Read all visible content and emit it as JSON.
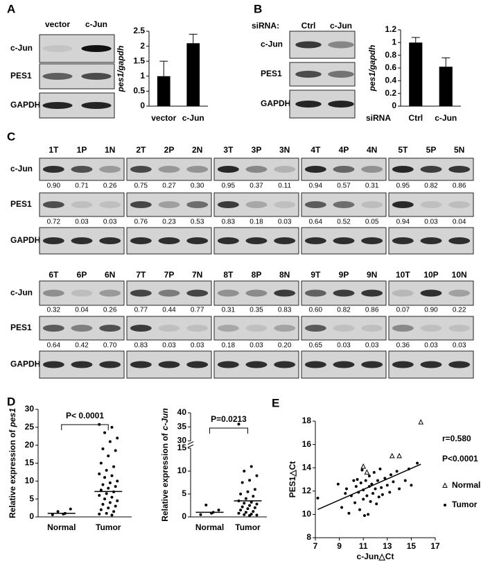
{
  "panels": [
    "A",
    "B",
    "C",
    "D",
    "E"
  ],
  "blot_a": {
    "lanes": [
      "vector",
      "c-Jun"
    ],
    "rows": [
      "c-Jun",
      "PES1",
      "GAPDH"
    ]
  },
  "blot_b": {
    "label": "siRNA:",
    "lanes": [
      "Ctrl",
      "c-Jun"
    ],
    "rows": [
      "c-Jun",
      "PES1",
      "GAPDH"
    ]
  },
  "blot_c": {
    "rows": [
      "c-Jun",
      "PES1",
      "GAPDH"
    ],
    "groups": [
      {
        "lanes": [
          "1T",
          "1P",
          "1N"
        ],
        "cjun": [
          "0.90",
          "0.71",
          "0.26"
        ],
        "pes1": [
          "0.72",
          "0.03",
          "0.03"
        ]
      },
      {
        "lanes": [
          "2T",
          "2P",
          "2N"
        ],
        "cjun": [
          "0.75",
          "0.27",
          "0.30"
        ],
        "pes1": [
          "0.76",
          "0.23",
          "0.53"
        ]
      },
      {
        "lanes": [
          "3T",
          "3P",
          "3N"
        ],
        "cjun": [
          "0.95",
          "0.37",
          "0.11"
        ],
        "pes1": [
          "0.83",
          "0.18",
          "0.03"
        ]
      },
      {
        "lanes": [
          "4T",
          "4P",
          "4N"
        ],
        "cjun": [
          "0.94",
          "0.57",
          "0.31"
        ],
        "pes1": [
          "0.64",
          "0.52",
          "0.05"
        ]
      },
      {
        "lanes": [
          "5T",
          "5P",
          "5N"
        ],
        "cjun": [
          "0.95",
          "0.82",
          "0.86"
        ],
        "pes1": [
          "0.94",
          "0.03",
          "0.04"
        ]
      },
      {
        "lanes": [
          "6T",
          "6P",
          "6N"
        ],
        "cjun": [
          "0.32",
          "0.04",
          "0.26"
        ],
        "pes1": [
          "0.64",
          "0.42",
          "0.70"
        ]
      },
      {
        "lanes": [
          "7T",
          "7P",
          "7N"
        ],
        "cjun": [
          "0.77",
          "0.44",
          "0.77"
        ],
        "pes1": [
          "0.83",
          "0.03",
          "0.03"
        ]
      },
      {
        "lanes": [
          "8T",
          "8P",
          "8N"
        ],
        "cjun": [
          "0.31",
          "0.35",
          "0.83"
        ],
        "pes1": [
          "0.18",
          "0.03",
          "0.20"
        ]
      },
      {
        "lanes": [
          "9T",
          "9P",
          "9N"
        ],
        "cjun": [
          "0.60",
          "0.82",
          "0.86"
        ],
        "pes1": [
          "0.65",
          "0.03",
          "0.03"
        ]
      },
      {
        "lanes": [
          "10T",
          "10P",
          "10N"
        ],
        "cjun": [
          "0.07",
          "0.90",
          "0.22"
        ],
        "pes1": [
          "0.36",
          "0.03",
          "0.03"
        ]
      }
    ]
  },
  "chart_data": [
    {
      "type": "bar",
      "ylabel": "pes1/gapdh",
      "categories": [
        "vector",
        "c-Jun"
      ],
      "values": [
        1.0,
        2.1
      ],
      "errors": [
        0.5,
        0.3
      ],
      "color": "#000000",
      "ylim": [
        0,
        2.5
      ],
      "yticks": [
        0,
        0.5,
        1,
        1.5,
        2,
        2.5
      ]
    },
    {
      "type": "bar",
      "ylabel": "pes1/gapdh",
      "xlabel": "siRNA",
      "categories": [
        "Ctrl",
        "c-Jun"
      ],
      "values": [
        1.0,
        0.62
      ],
      "errors": [
        0.08,
        0.14
      ],
      "color": "#000000",
      "ylim": [
        0,
        1.2
      ],
      "yticks": [
        0,
        0.2,
        0.4,
        0.6,
        0.8,
        1,
        1.2
      ]
    },
    {
      "type": "strip",
      "ylabel": "Relative expression of",
      "ylabel_gene": "pes1",
      "annotation": "P< 0.0001",
      "categories": [
        "Normal",
        "Tumor"
      ],
      "values": [
        [
          0.6,
          1,
          1.5,
          2.2,
          0.8
        ],
        [
          25.8,
          25,
          23.5,
          22,
          21,
          19,
          18.5,
          17,
          15,
          14,
          13,
          12,
          11.5,
          11,
          10,
          9.5,
          9,
          8.5,
          8,
          7.5,
          7,
          6.5,
          6,
          5.5,
          5,
          4.5,
          4,
          3.5,
          3,
          2.5,
          2,
          1.5,
          1,
          0.8,
          0.5
        ]
      ],
      "centers": [
        1.0,
        7.1
      ],
      "ylim": [
        0,
        30
      ],
      "yticks": [
        0,
        5,
        10,
        15,
        20,
        25,
        30
      ]
    },
    {
      "type": "strip",
      "ylabel": "Relative expression of",
      "ylabel_gene": "c-Jun",
      "annotation": "P=0.0213",
      "categories": [
        "Normal",
        "Tumor"
      ],
      "values": [
        [
          0.5,
          1,
          2.6,
          1.5,
          0.8
        ],
        [
          36,
          11,
          10,
          9,
          8,
          7.5,
          6,
          5.5,
          5,
          4.5,
          4,
          3.5,
          3.2,
          3,
          2.8,
          2.5,
          2.2,
          2,
          1.8,
          1.5,
          1.2,
          1,
          0.8,
          0.6,
          0.5,
          0.4,
          0.3
        ]
      ],
      "centers": [
        1.0,
        3.5
      ],
      "ylim": [
        0,
        40
      ],
      "ybreak": [
        15,
        30
      ],
      "yticks": [
        0,
        5,
        10,
        15,
        30,
        35,
        40
      ]
    },
    {
      "type": "scatter",
      "xlabel": "c-Jun△Ct",
      "ylabel": "PES1△Ct",
      "annotations": [
        "r=0.580",
        "P<0.0001"
      ],
      "xlim": [
        7,
        17
      ],
      "xticks": [
        7,
        9,
        11,
        13,
        15,
        17
      ],
      "ylim": [
        8,
        18
      ],
      "yticks": [
        8,
        10,
        12,
        14,
        16,
        18
      ],
      "series": [
        {
          "name": "Normal",
          "color": "#999999",
          "marker": "triangle",
          "x": [
            11.0,
            13.4,
            14.0,
            15.8,
            11.3
          ],
          "y": [
            14.1,
            15.0,
            15.0,
            17.9,
            13.6
          ]
        },
        {
          "name": "Tumor",
          "color": "#000000",
          "marker": "circle",
          "x": [
            7.2,
            8.9,
            9.2,
            9.5,
            9.6,
            9.8,
            10.0,
            10.2,
            10.3,
            10.4,
            10.5,
            10.6,
            10.7,
            10.8,
            10.9,
            11.0,
            11.0,
            11.1,
            11.2,
            11.3,
            11.4,
            11.5,
            11.5,
            11.6,
            11.7,
            11.8,
            11.9,
            12.0,
            12.1,
            12.2,
            12.3,
            12.4,
            12.5,
            12.6,
            12.8,
            13.0,
            13.2,
            13.3,
            13.5,
            13.8,
            14.0,
            14.5,
            14.8,
            15.0,
            15.5
          ],
          "y": [
            11.4,
            12.6,
            10.6,
            11.8,
            12.2,
            10.1,
            11.6,
            12.9,
            11.0,
            12.4,
            13.0,
            11.9,
            10.4,
            12.7,
            13.8,
            11.3,
            12.1,
            9.9,
            12.9,
            11.6,
            10.0,
            12.4,
            13.3,
            11.1,
            12.6,
            11.8,
            13.6,
            12.2,
            10.9,
            12.9,
            11.5,
            13.9,
            12.3,
            11.7,
            13.1,
            12.5,
            11.9,
            13.4,
            12.8,
            13.7,
            12.2,
            12.9,
            13.9,
            12.5,
            14.4
          ]
        }
      ]
    }
  ]
}
